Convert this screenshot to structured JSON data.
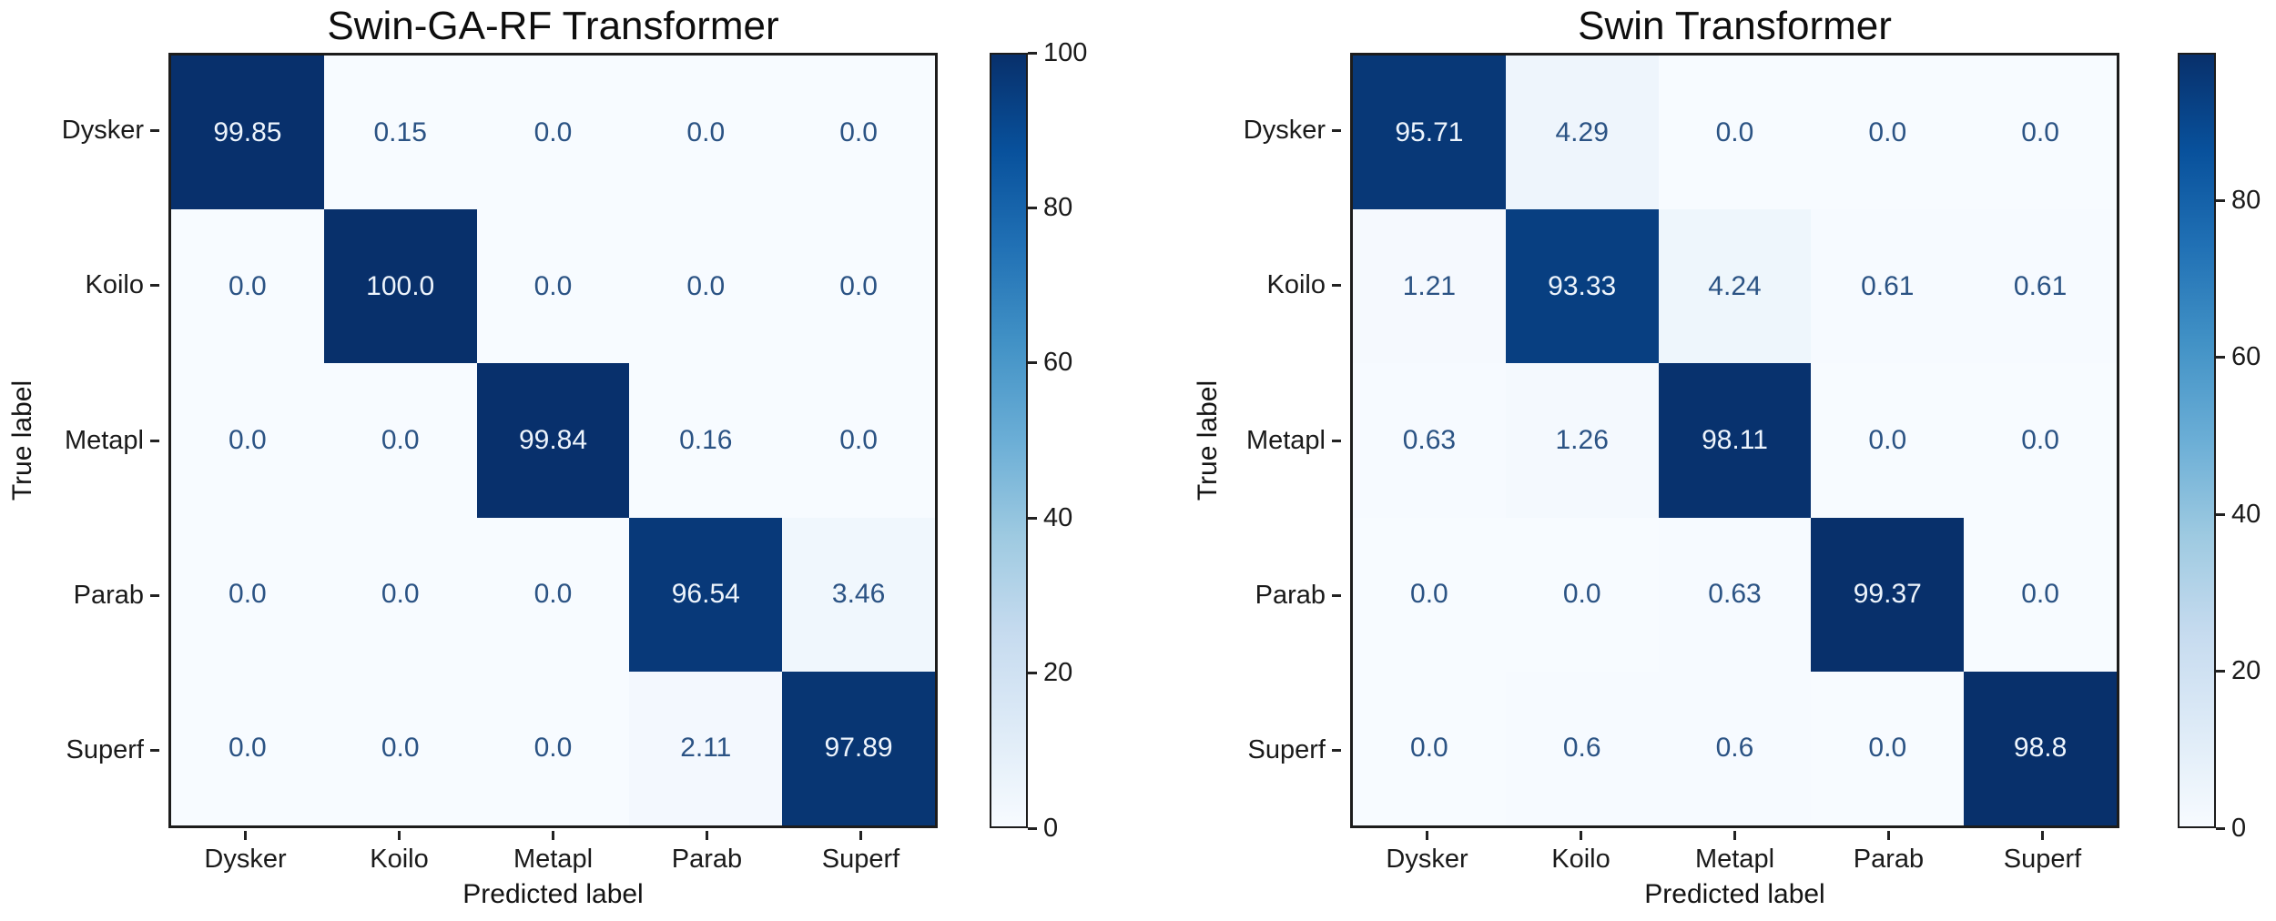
{
  "figure": {
    "background": "#ffffff"
  },
  "colors": {
    "colormap": "Blues",
    "colormap_anchors": [
      {
        "p": 0.0,
        "c": "#f7fbff"
      },
      {
        "p": 0.125,
        "c": "#deebf7"
      },
      {
        "p": 0.25,
        "c": "#c6dbef"
      },
      {
        "p": 0.375,
        "c": "#9ecae1"
      },
      {
        "p": 0.5,
        "c": "#6baed6"
      },
      {
        "p": 0.625,
        "c": "#4292c6"
      },
      {
        "p": 0.75,
        "c": "#2171b5"
      },
      {
        "p": 0.875,
        "c": "#08519c"
      },
      {
        "p": 1.0,
        "c": "#08306b"
      }
    ],
    "cell_text_light": "#edf4fc",
    "cell_text_dark": "#2b5384",
    "axis_text": "#1a1a1a"
  },
  "chart_data": [
    {
      "type": "heatmap",
      "title": "Swin-GA-RF Transformer",
      "xlabel": "Predicted label",
      "ylabel": "True label",
      "categories": [
        "Dysker",
        "Koilo",
        "Metapl",
        "Parab",
        "Superf"
      ],
      "matrix": [
        [
          99.85,
          0.15,
          0.0,
          0.0,
          0.0
        ],
        [
          0.0,
          100.0,
          0.0,
          0.0,
          0.0
        ],
        [
          0.0,
          0.0,
          99.84,
          0.16,
          0.0
        ],
        [
          0.0,
          0.0,
          0.0,
          96.54,
          3.46
        ],
        [
          0.0,
          0.0,
          0.0,
          2.11,
          97.89
        ]
      ],
      "cell_labels": [
        [
          "99.85",
          "0.15",
          "0.0",
          "0.0",
          "0.0"
        ],
        [
          "0.0",
          "100.0",
          "0.0",
          "0.0",
          "0.0"
        ],
        [
          "0.0",
          "0.0",
          "99.84",
          "0.16",
          "0.0"
        ],
        [
          "0.0",
          "0.0",
          "0.0",
          "96.54",
          "3.46"
        ],
        [
          "0.0",
          "0.0",
          "0.0",
          "2.11",
          "97.89"
        ]
      ],
      "vmin": 0,
      "vmax": 100,
      "colorbar_ticks": [
        "100",
        "80",
        "60",
        "40",
        "20",
        "0"
      ],
      "legend_position": "right",
      "grid": false
    },
    {
      "type": "heatmap",
      "title": "Swin Transformer",
      "xlabel": "Predicted label",
      "ylabel": "True label",
      "categories": [
        "Dysker",
        "Koilo",
        "Metapl",
        "Parab",
        "Superf"
      ],
      "matrix": [
        [
          95.71,
          4.29,
          0.0,
          0.0,
          0.0
        ],
        [
          1.21,
          93.33,
          4.24,
          0.61,
          0.61
        ],
        [
          0.63,
          1.26,
          98.11,
          0.0,
          0.0
        ],
        [
          0.0,
          0.0,
          0.63,
          99.37,
          0.0
        ],
        [
          0.0,
          0.6,
          0.6,
          0.0,
          98.8
        ]
      ],
      "cell_labels": [
        [
          "95.71",
          "4.29",
          "0.0",
          "0.0",
          "0.0"
        ],
        [
          "1.21",
          "93.33",
          "4.24",
          "0.61",
          "0.61"
        ],
        [
          "0.63",
          "1.26",
          "98.11",
          "0.0",
          "0.0"
        ],
        [
          "0.0",
          "0.0",
          "0.63",
          "99.37",
          "0.0"
        ],
        [
          "0.0",
          "0.6",
          "0.6",
          "0.0",
          "98.8"
        ]
      ],
      "vmin": 0,
      "vmax": 98.8,
      "colorbar_ticks": [
        "80",
        "60",
        "40",
        "20",
        "0"
      ],
      "legend_position": "right",
      "grid": false
    }
  ]
}
